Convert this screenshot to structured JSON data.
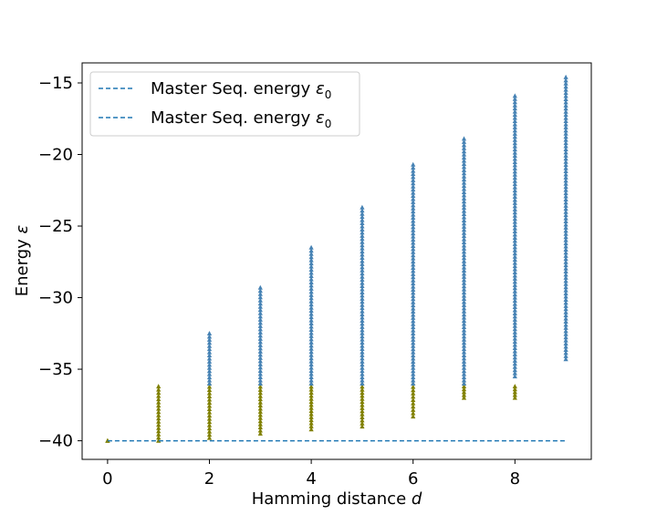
{
  "chart_data": {
    "type": "scatter",
    "title": "",
    "xlabel": {
      "text": "Hamming distance ",
      "symbol": "d"
    },
    "ylabel": {
      "text": "Energy ",
      "symbol": "ε"
    },
    "xlim": [
      -0.5,
      9.5
    ],
    "ylim": [
      -41.3,
      -13.6
    ],
    "xticks": [
      0,
      2,
      4,
      6,
      8
    ],
    "xtick_labels": [
      "0",
      "2",
      "4",
      "6",
      "8"
    ],
    "yticks": [
      -40,
      -35,
      -30,
      -25,
      -20,
      -15
    ],
    "ytick_labels": [
      "−40",
      "−35",
      "−30",
      "−25",
      "−20",
      "−15"
    ],
    "grid": false,
    "legend_position": "upper-left",
    "legend": [
      {
        "text": "Master Seq. energy ",
        "symbol": "ε",
        "subscript": "0",
        "color": "#1f77b4",
        "style": "dashed"
      },
      {
        "text": "Master Seq. energy ",
        "symbol": "ε",
        "subscript": "0",
        "color": "#1f77b4",
        "style": "dashed"
      }
    ],
    "reference_line": {
      "y": -40,
      "x_range": [
        0,
        9
      ],
      "color": "#1f77b4",
      "style": "dashed"
    },
    "colors": {
      "low_energy": "#808000",
      "high_energy": "#4682b4"
    },
    "series": [
      {
        "color": "#808000",
        "marker": "triangle",
        "ranges": [
          {
            "x": 0,
            "y_min": -40.0,
            "y_max": -40.0
          },
          {
            "x": 1,
            "y_min": -40.0,
            "y_max": -36.2
          },
          {
            "x": 2,
            "y_min": -39.8,
            "y_max": -36.0
          },
          {
            "x": 3,
            "y_min": -39.5,
            "y_max": -36.0
          },
          {
            "x": 4,
            "y_min": -39.2,
            "y_max": -36.0
          },
          {
            "x": 5,
            "y_min": -39.0,
            "y_max": -36.0
          },
          {
            "x": 6,
            "y_min": -38.3,
            "y_max": -36.0
          },
          {
            "x": 7,
            "y_min": -37.0,
            "y_max": -36.0
          },
          {
            "x": 8,
            "y_min": -37.0,
            "y_max": -36.2
          }
        ]
      },
      {
        "color": "#4682b4",
        "marker": "triangle",
        "ranges": [
          {
            "x": 2,
            "y_min": -36.0,
            "y_max": -32.5
          },
          {
            "x": 3,
            "y_min": -36.0,
            "y_max": -29.3
          },
          {
            "x": 4,
            "y_min": -36.0,
            "y_max": -26.5
          },
          {
            "x": 5,
            "y_min": -36.0,
            "y_max": -23.7
          },
          {
            "x": 6,
            "y_min": -36.0,
            "y_max": -20.7
          },
          {
            "x": 7,
            "y_min": -36.0,
            "y_max": -18.9
          },
          {
            "x": 8,
            "y_min": -35.5,
            "y_max": -15.9
          },
          {
            "x": 9,
            "y_min": -34.3,
            "y_max": -14.6
          }
        ]
      }
    ]
  }
}
